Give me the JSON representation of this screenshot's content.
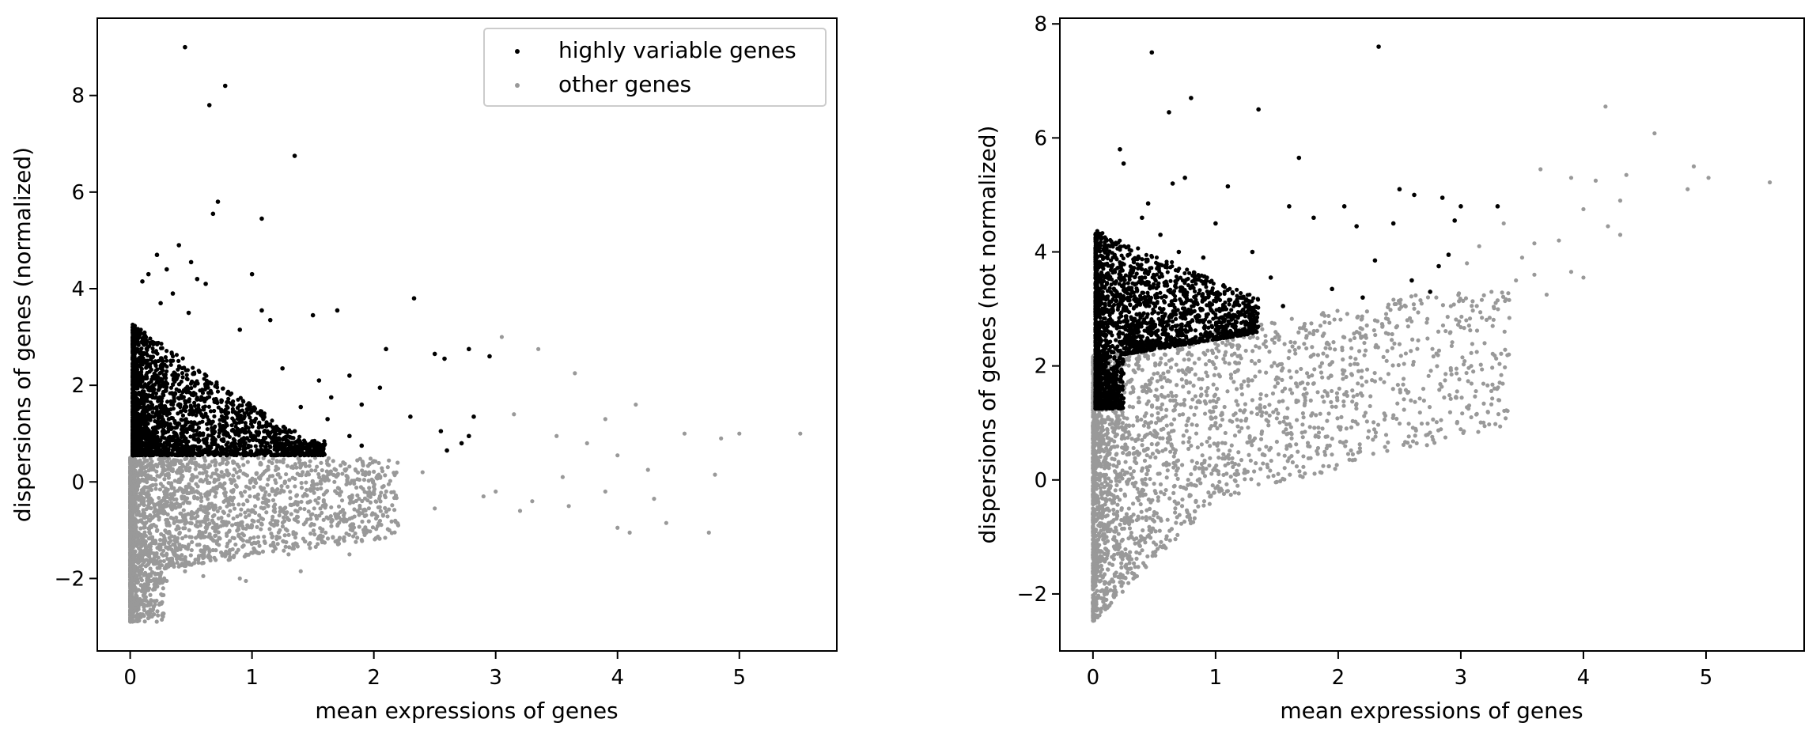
{
  "chart_data": [
    {
      "type": "scatter",
      "title": "",
      "xlabel": "mean expressions of genes",
      "ylabel": "dispersions of genes (normalized)",
      "xlim": [
        -0.27,
        5.8
      ],
      "ylim": [
        -3.5,
        9.6
      ],
      "xticks": [
        0,
        1,
        2,
        3,
        4,
        5
      ],
      "xtick_labels": [
        "0",
        "1",
        "2",
        "3",
        "4",
        "5"
      ],
      "yticks": [
        -2,
        0,
        2,
        4,
        6,
        8
      ],
      "ytick_labels": [
        "−2",
        "0",
        "2",
        "4",
        "6",
        "8"
      ],
      "grid": false,
      "legend": {
        "placement": "top-right",
        "entries": [
          "highly variable genes",
          "other genes"
        ]
      },
      "series": [
        {
          "name": "highly variable genes",
          "color": "#000000",
          "points": [
            [
              0.45,
              9.0
            ],
            [
              0.78,
              8.2
            ],
            [
              0.65,
              7.8
            ],
            [
              1.35,
              6.75
            ],
            [
              0.72,
              5.8
            ],
            [
              0.68,
              5.55
            ],
            [
              1.08,
              5.45
            ],
            [
              0.4,
              4.9
            ],
            [
              0.5,
              4.55
            ],
            [
              0.22,
              4.7
            ],
            [
              1.0,
              4.3
            ],
            [
              0.55,
              4.2
            ],
            [
              0.3,
              4.4
            ],
            [
              0.62,
              4.1
            ],
            [
              0.15,
              4.3
            ],
            [
              0.1,
              4.15
            ],
            [
              2.33,
              3.8
            ],
            [
              1.7,
              3.55
            ],
            [
              1.5,
              3.45
            ],
            [
              1.08,
              3.55
            ],
            [
              1.15,
              3.35
            ],
            [
              0.35,
              3.9
            ],
            [
              0.48,
              3.5
            ],
            [
              0.25,
              3.7
            ],
            [
              0.9,
              3.15
            ],
            [
              2.1,
              2.75
            ],
            [
              2.5,
              2.65
            ],
            [
              2.78,
              2.75
            ],
            [
              2.58,
              2.55
            ],
            [
              2.95,
              2.6
            ],
            [
              2.05,
              1.95
            ],
            [
              1.9,
              1.6
            ],
            [
              2.3,
              1.35
            ],
            [
              2.55,
              1.05
            ],
            [
              2.82,
              1.35
            ],
            [
              2.78,
              0.95
            ],
            [
              2.72,
              0.8
            ],
            [
              2.6,
              0.65
            ],
            [
              1.55,
              2.1
            ],
            [
              1.65,
              1.75
            ],
            [
              1.8,
              2.2
            ],
            [
              1.25,
              2.35
            ],
            [
              1.4,
              1.55
            ],
            [
              1.62,
              1.3
            ],
            [
              1.35,
              1.05
            ],
            [
              1.8,
              0.95
            ],
            [
              1.9,
              0.75
            ],
            [
              1.2,
              0.85
            ],
            [
              0.95,
              1.15
            ]
          ],
          "dense_region": {
            "x_range": [
              0.02,
              1.6
            ],
            "y_min": 0.55,
            "y_max_near_zero": 3.3
          }
        },
        {
          "name": "other genes",
          "color": "#999999",
          "points": [
            [
              3.05,
              3.0
            ],
            [
              3.35,
              2.75
            ],
            [
              3.65,
              2.25
            ],
            [
              3.15,
              1.4
            ],
            [
              4.15,
              1.6
            ],
            [
              3.9,
              1.3
            ],
            [
              4.55,
              1.0
            ],
            [
              4.85,
              0.9
            ],
            [
              5.0,
              1.0
            ],
            [
              5.5,
              1.0
            ],
            [
              3.5,
              0.95
            ],
            [
              3.75,
              0.8
            ],
            [
              4.0,
              0.55
            ],
            [
              4.25,
              0.25
            ],
            [
              3.55,
              0.1
            ],
            [
              3.9,
              -0.2
            ],
            [
              4.3,
              -0.35
            ],
            [
              4.4,
              -0.85
            ],
            [
              4.1,
              -1.05
            ],
            [
              4.0,
              -0.95
            ],
            [
              4.8,
              0.15
            ],
            [
              4.75,
              -1.05
            ],
            [
              3.3,
              -0.4
            ],
            [
              3.0,
              -0.2
            ],
            [
              3.2,
              -0.6
            ],
            [
              3.6,
              -0.5
            ],
            [
              2.9,
              -0.3
            ],
            [
              2.5,
              -0.55
            ],
            [
              2.2,
              -0.9
            ],
            [
              1.9,
              -1.2
            ],
            [
              1.8,
              -1.5
            ],
            [
              1.4,
              -1.85
            ],
            [
              0.9,
              -2.0
            ],
            [
              0.95,
              -2.05
            ],
            [
              0.6,
              -1.95
            ],
            [
              0.3,
              -2.05
            ],
            [
              0.45,
              -1.85
            ],
            [
              1.3,
              -1.5
            ],
            [
              2.0,
              -0.2
            ],
            [
              2.4,
              0.2
            ]
          ],
          "dense_region": {
            "x_range": [
              0.0,
              2.2
            ],
            "y_min": -2.9,
            "y_max": 0.5
          }
        }
      ]
    },
    {
      "type": "scatter",
      "title": "",
      "xlabel": "mean expressions of genes",
      "ylabel": "dispersions of genes (not normalized)",
      "xlim": [
        -0.27,
        5.8
      ],
      "ylim": [
        -3.0,
        8.1
      ],
      "xticks": [
        0,
        1,
        2,
        3,
        4,
        5
      ],
      "xtick_labels": [
        "0",
        "1",
        "2",
        "3",
        "4",
        "5"
      ],
      "yticks": [
        -2,
        0,
        2,
        4,
        6,
        8
      ],
      "ytick_labels": [
        "−2",
        "0",
        "2",
        "4",
        "6",
        "8"
      ],
      "grid": false,
      "series": [
        {
          "name": "highly variable genes",
          "color": "#000000",
          "points": [
            [
              0.48,
              7.5
            ],
            [
              2.33,
              7.6
            ],
            [
              0.8,
              6.7
            ],
            [
              0.62,
              6.45
            ],
            [
              1.35,
              6.5
            ],
            [
              0.22,
              5.8
            ],
            [
              0.25,
              5.55
            ],
            [
              0.75,
              5.3
            ],
            [
              0.65,
              5.2
            ],
            [
              1.1,
              5.15
            ],
            [
              1.68,
              5.65
            ],
            [
              2.5,
              5.1
            ],
            [
              2.62,
              5.0
            ],
            [
              2.85,
              4.95
            ],
            [
              3.0,
              4.8
            ],
            [
              2.05,
              4.8
            ],
            [
              1.6,
              4.8
            ],
            [
              1.8,
              4.6
            ],
            [
              2.95,
              4.55
            ],
            [
              3.3,
              4.8
            ],
            [
              2.15,
              4.45
            ],
            [
              2.45,
              4.5
            ],
            [
              0.45,
              4.85
            ],
            [
              0.4,
              4.6
            ],
            [
              0.55,
              4.3
            ],
            [
              1.0,
              4.5
            ],
            [
              1.3,
              4.0
            ],
            [
              2.3,
              3.85
            ],
            [
              2.6,
              3.5
            ],
            [
              2.82,
              3.75
            ],
            [
              2.9,
              3.95
            ],
            [
              2.75,
              3.3
            ],
            [
              1.95,
              3.35
            ],
            [
              1.45,
              3.55
            ],
            [
              1.55,
              3.05
            ],
            [
              1.2,
              3.2
            ],
            [
              0.9,
              3.9
            ],
            [
              0.7,
              4.0
            ],
            [
              2.2,
              3.2
            ]
          ],
          "dense_region": {
            "x_range": [
              0.02,
              1.35
            ],
            "y_min": 1.25,
            "y_max_near_zero": 4.4
          }
        },
        {
          "name": "other genes",
          "color": "#999999",
          "points": [
            [
              4.18,
              6.55
            ],
            [
              4.58,
              6.08
            ],
            [
              4.9,
              5.5
            ],
            [
              5.02,
              5.3
            ],
            [
              5.52,
              5.22
            ],
            [
              4.35,
              5.35
            ],
            [
              4.85,
              5.1
            ],
            [
              4.1,
              5.25
            ],
            [
              3.65,
              5.45
            ],
            [
              4.3,
              4.9
            ],
            [
              4.0,
              4.75
            ],
            [
              4.3,
              4.3
            ],
            [
              4.2,
              4.45
            ],
            [
              3.9,
              5.3
            ],
            [
              3.8,
              4.2
            ],
            [
              3.6,
              4.15
            ],
            [
              3.35,
              4.5
            ],
            [
              3.5,
              3.9
            ],
            [
              3.25,
              3.3
            ],
            [
              4.0,
              3.55
            ],
            [
              3.9,
              3.65
            ],
            [
              3.7,
              3.25
            ],
            [
              3.45,
              3.5
            ],
            [
              3.15,
              4.1
            ],
            [
              3.05,
              3.8
            ],
            [
              2.8,
              3.2
            ],
            [
              3.3,
              3.15
            ],
            [
              3.6,
              3.6
            ],
            [
              2.5,
              3.0
            ],
            [
              2.3,
              2.8
            ],
            [
              2.05,
              2.5
            ],
            [
              1.8,
              2.2
            ],
            [
              1.5,
              1.8
            ],
            [
              1.3,
              1.4
            ],
            [
              1.0,
              1.0
            ],
            [
              0.8,
              0.6
            ],
            [
              0.6,
              0.3
            ],
            [
              0.4,
              0.0
            ],
            [
              0.2,
              -0.3
            ],
            [
              0.1,
              -0.8
            ]
          ],
          "dense_region": {
            "x_range": [
              0.0,
              3.4
            ],
            "y_min": -2.5,
            "y_max": 3.3
          }
        }
      ]
    }
  ]
}
